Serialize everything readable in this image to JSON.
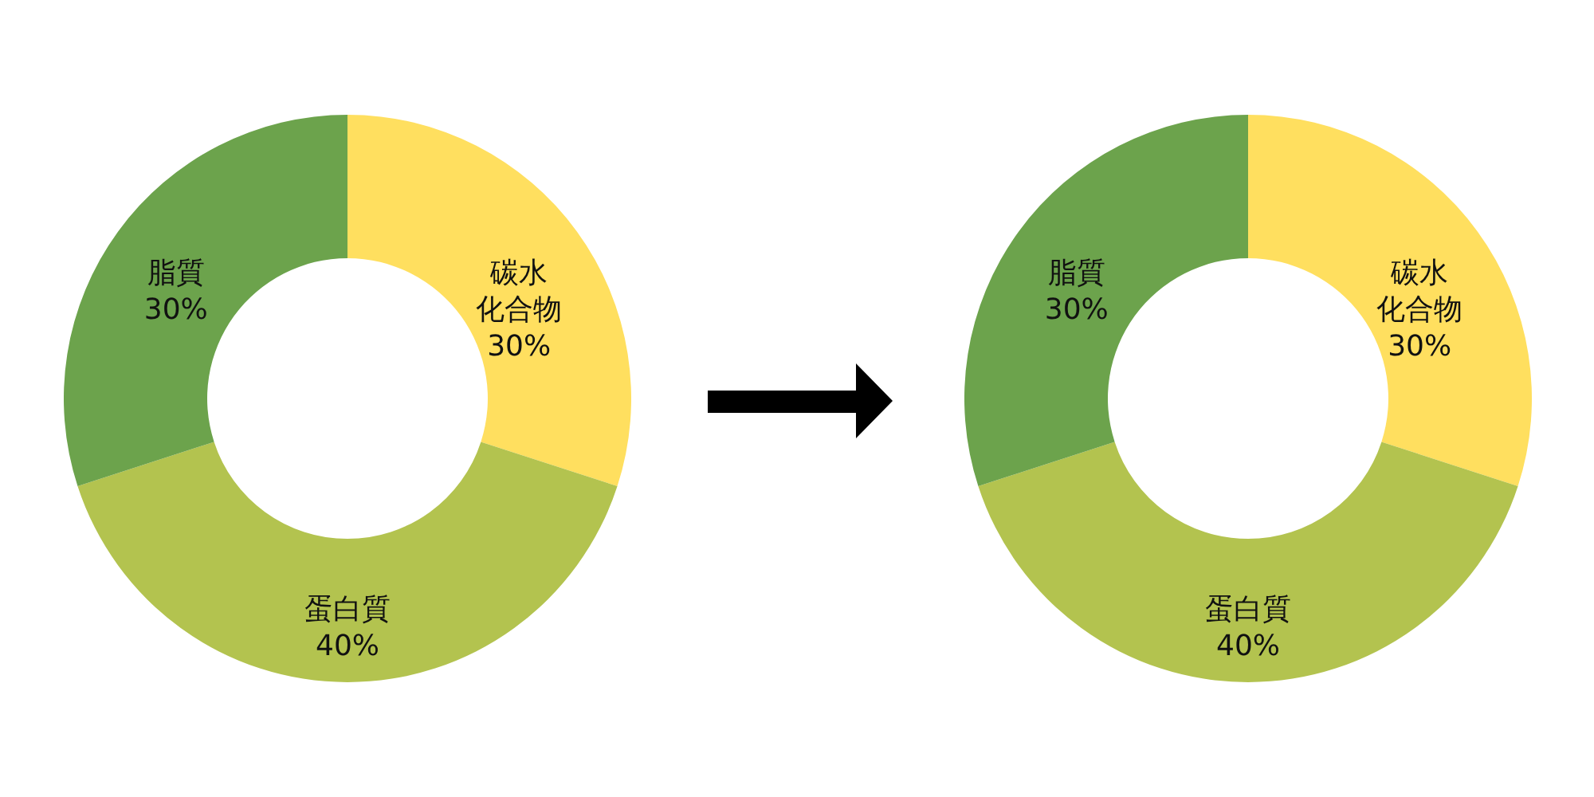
{
  "chart_data": [
    {
      "type": "donut",
      "categories": [
        "碳水化合物",
        "蛋白質",
        "脂質"
      ],
      "values": [
        30,
        40,
        30
      ],
      "value_labels": [
        "30%",
        "40%",
        "30%"
      ],
      "colors": [
        "#ffdf5f",
        "#b3c34f",
        "#6ca34c"
      ]
    },
    {
      "type": "donut",
      "categories": [
        "碳水化合物",
        "蛋白質",
        "脂質"
      ],
      "values": [
        30,
        40,
        30
      ],
      "value_labels": [
        "30%",
        "40%",
        "30%"
      ],
      "colors": [
        "#ffdf5f",
        "#b3c34f",
        "#6ca34c"
      ]
    }
  ]
}
